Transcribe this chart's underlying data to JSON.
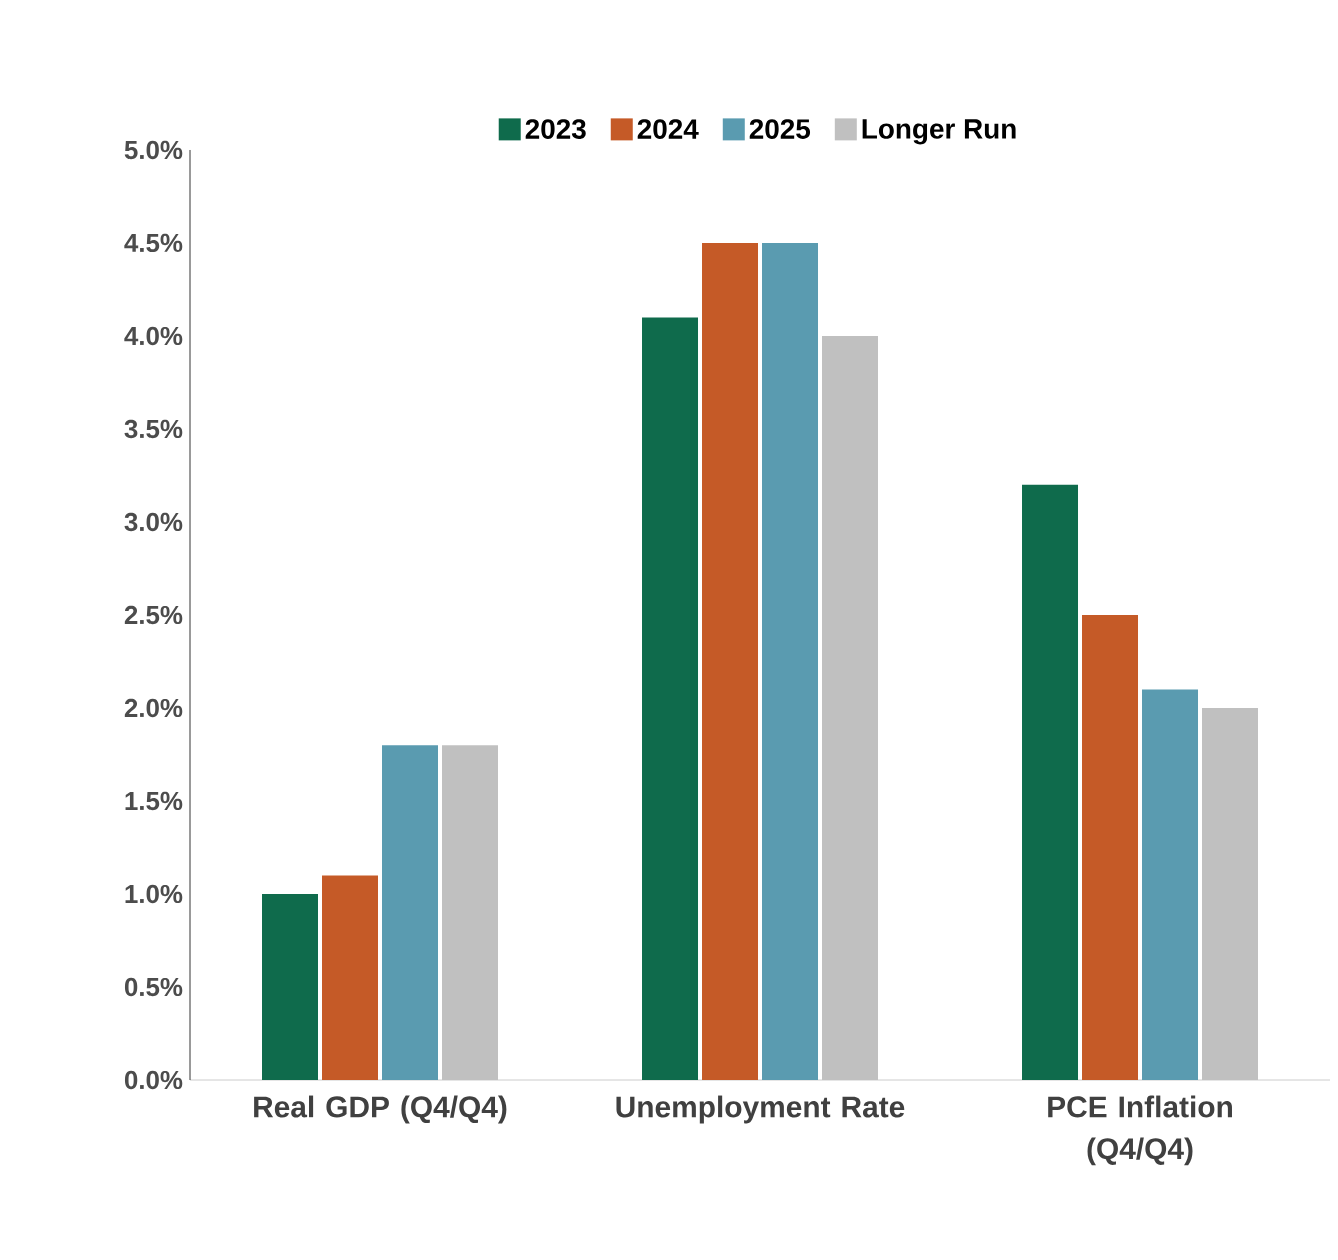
{
  "chart_data": {
    "type": "bar",
    "categories": [
      "Real GDP (Q4/Q4)",
      "Unemployment Rate",
      "PCE Inflation (Q4/Q4)"
    ],
    "series": [
      {
        "name": "2023",
        "color": "#0f6b4c",
        "values": [
          1.0,
          4.1,
          3.2
        ]
      },
      {
        "name": "2024",
        "color": "#c55a27",
        "values": [
          1.1,
          4.5,
          2.5
        ]
      },
      {
        "name": "2025",
        "color": "#5a9bb0",
        "values": [
          1.8,
          4.5,
          2.1
        ]
      },
      {
        "name": "Longer Run",
        "color": "#c0c0c0",
        "values": [
          1.8,
          4.0,
          2.0
        ]
      }
    ],
    "ylim": [
      0,
      5
    ],
    "yticks": [
      {
        "value": 0,
        "label": "0.0%"
      },
      {
        "value": 0.5,
        "label": "0.5%"
      },
      {
        "value": 1,
        "label": "1.0%"
      },
      {
        "value": 1.5,
        "label": "1.5%"
      },
      {
        "value": 2,
        "label": "2.0%"
      },
      {
        "value": 2.5,
        "label": "2.5%"
      },
      {
        "value": 3,
        "label": "3.0%"
      },
      {
        "value": 3.5,
        "label": "3.5%"
      },
      {
        "value": 4,
        "label": "4.0%"
      },
      {
        "value": 4.5,
        "label": "4.5%"
      },
      {
        "value": 5,
        "label": "5.0%"
      }
    ],
    "grid": false,
    "legend": "top"
  }
}
